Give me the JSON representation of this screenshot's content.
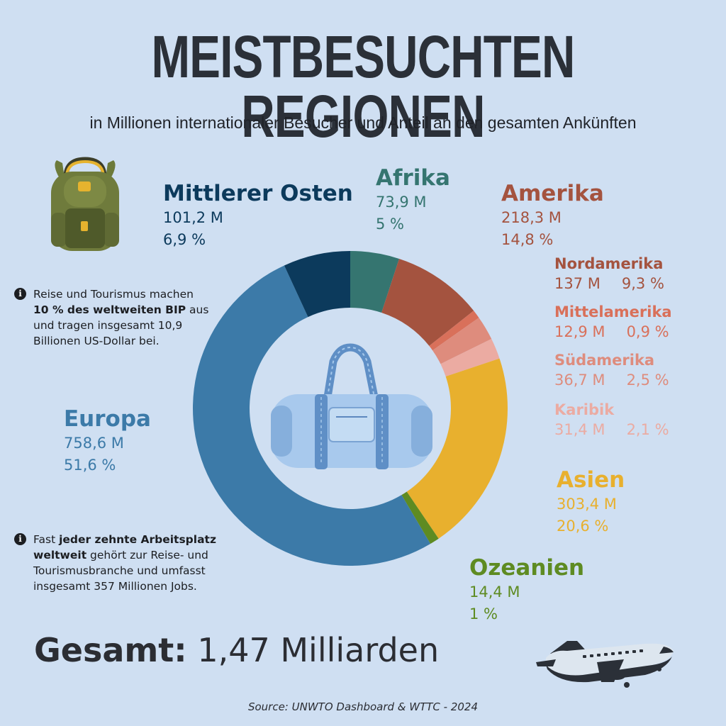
{
  "header": {
    "title": "MEISTBESUCHTEN REGIONEN",
    "subtitle": "in Millionen internationaler Besucher und Anteil an den gesamten Ankünften"
  },
  "chart_data": {
    "type": "pie",
    "total_label": "Gesamt:",
    "total_value": "1,47 Milliarden",
    "series": [
      {
        "name": "Afrika",
        "value": 73.9,
        "value_label": "73,9 M",
        "share": 5.0,
        "share_label": "5 %",
        "color": "#357570"
      },
      {
        "name": "Nordamerika",
        "value": 137,
        "value_label": "137 M",
        "share": 9.3,
        "share_label": "9,3 %",
        "color": "#a4533f"
      },
      {
        "name": "Mittelamerika",
        "value": 12.9,
        "value_label": "12,9 M",
        "share": 0.9,
        "share_label": "0,9 %",
        "color": "#d9705a"
      },
      {
        "name": "Südamerika",
        "value": 36.7,
        "value_label": "36,7 M",
        "share": 2.5,
        "share_label": "2,5 %",
        "color": "#de8c7d"
      },
      {
        "name": "Karibik",
        "value": 31.4,
        "value_label": "31,4 M",
        "share": 2.1,
        "share_label": "2,1 %",
        "color": "#ebaba2"
      },
      {
        "name": "Asien",
        "value": 303.4,
        "value_label": "303,4 M",
        "share": 20.6,
        "share_label": "20,6 %",
        "color": "#e8b02e"
      },
      {
        "name": "Ozeanien",
        "value": 14.4,
        "value_label": "14,4 M",
        "share": 1.0,
        "share_label": "1 %",
        "color": "#5e8b22"
      },
      {
        "name": "Europa",
        "value": 758.6,
        "value_label": "758,6 M",
        "share": 51.6,
        "share_label": "51,6 %",
        "color": "#3c7aa8"
      },
      {
        "name": "Mittlerer Osten",
        "value": 101.2,
        "value_label": "101,2 M",
        "share": 6.9,
        "share_label": "6,9 %",
        "color": "#0c3a5c"
      }
    ],
    "group": {
      "name": "Amerika",
      "value": 218.3,
      "value_label": "218,3 M",
      "share": 14.8,
      "share_label": "14,8 %",
      "color": "#a4533f"
    }
  },
  "notes": {
    "n1_a": "Reise und Tourismus machen ",
    "n1_b": "10 % des weltweiten BIP",
    "n1_c": " aus und tragen insgesamt 10,9 Billionen US-Dollar bei.",
    "n2_a": "Fast ",
    "n2_b": "jeder zehnte Arbeitsplatz weltweit",
    "n2_c": " gehört zur Reise- und Tourismusbranche und umfasst insgesamt 357 Millionen Jobs."
  },
  "info_glyph": "i",
  "source": "Source: UNWTO Dashboard & WTTC - 2024",
  "icons": [
    "backpack-icon",
    "duffel-bag-icon",
    "airplane-icon",
    "info-icon"
  ]
}
